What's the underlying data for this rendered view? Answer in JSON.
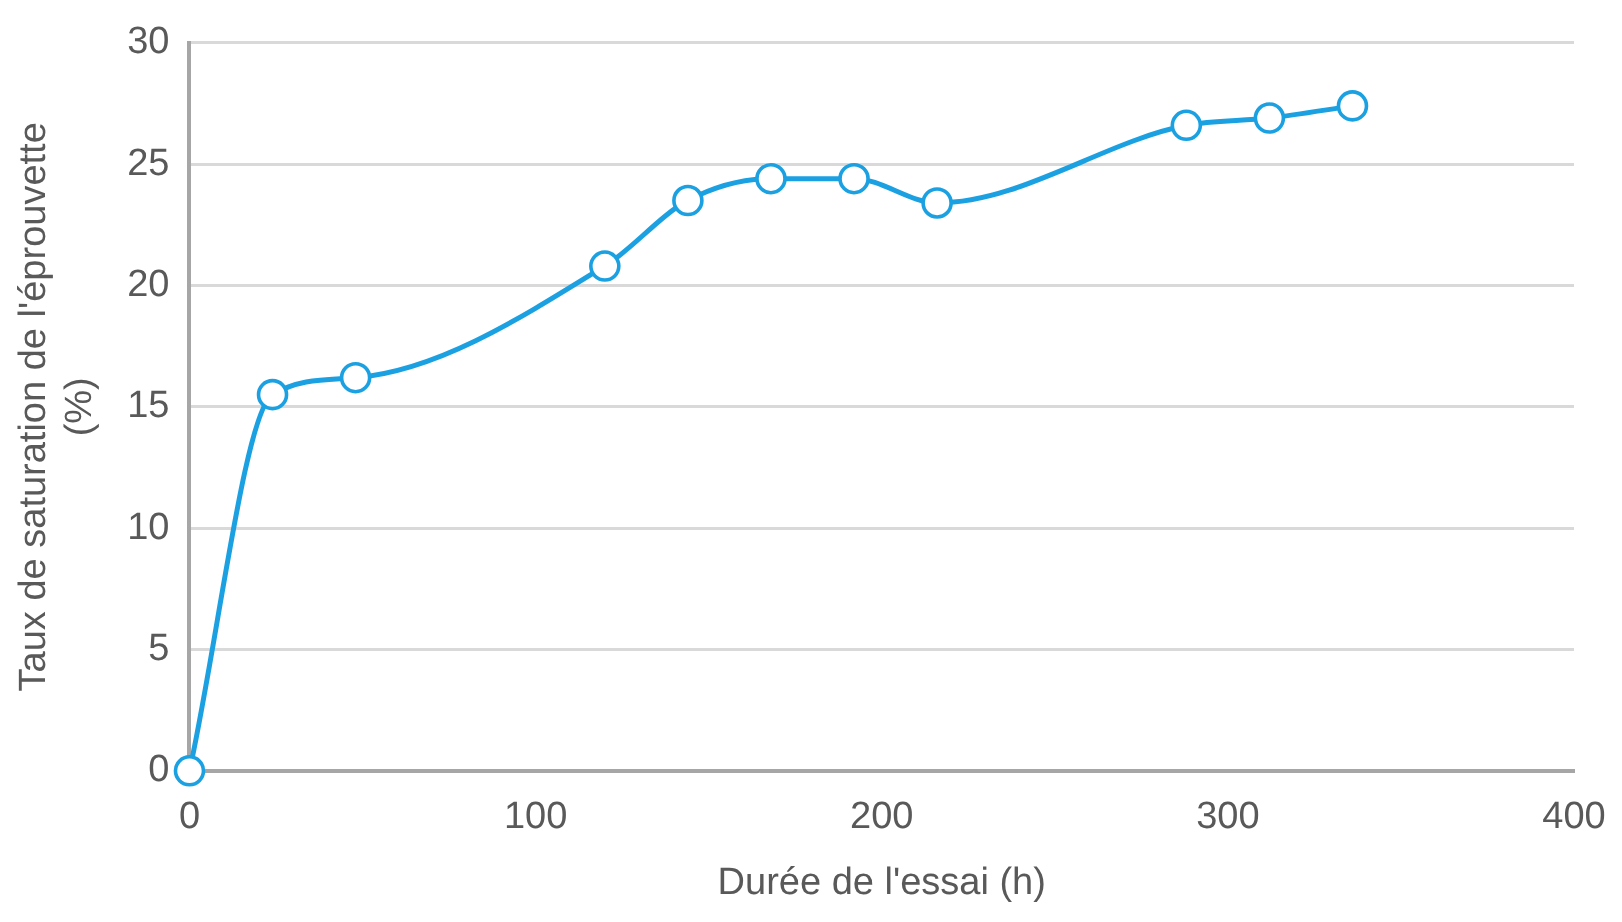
{
  "chart_data": {
    "type": "line",
    "xlabel": "Durée de l'essai (h)",
    "ylabel": "Taux de saturation de l'éprouvette (%)",
    "x": [
      0,
      24,
      48,
      120,
      144,
      168,
      192,
      216,
      288,
      312,
      336
    ],
    "series": [
      {
        "color": "#1ba1e2",
        "values": [
          0,
          15.5,
          16.2,
          20.8,
          23.5,
          24.4,
          24.4,
          23.4,
          26.6,
          26.9,
          27.4
        ]
      }
    ],
    "xlim": [
      0,
      400
    ],
    "xticks": [
      0,
      100,
      200,
      300,
      400
    ],
    "ylim": [
      0,
      30
    ],
    "yticks": [
      0,
      5,
      10,
      15,
      20,
      25,
      30
    ],
    "grid": "y",
    "legend": false,
    "marker": "circle",
    "line_style": "solid"
  }
}
